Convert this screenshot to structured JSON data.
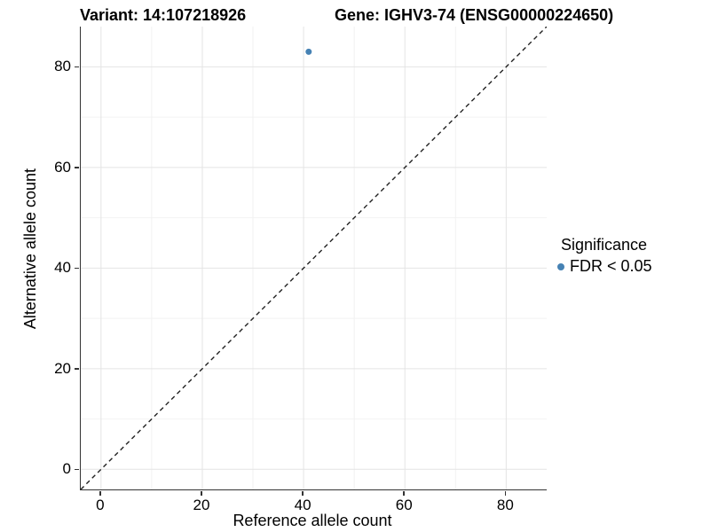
{
  "header": {
    "left_title": "Variant: 14:107218926",
    "right_title": "Gene: IGHV3-74 (ENSG00000224650)"
  },
  "chart_data": {
    "type": "scatter",
    "xlabel": "Reference allele count",
    "ylabel": "Alternative allele count",
    "xlim": [
      -4,
      88
    ],
    "ylim": [
      -4,
      88
    ],
    "x_ticks": [
      0,
      20,
      40,
      60,
      80
    ],
    "y_ticks": [
      0,
      20,
      40,
      60,
      80
    ],
    "minor_gridlines": [
      10,
      30,
      50,
      70
    ],
    "grid": "major and minor, light gray, on white background",
    "points": [
      {
        "x": 41,
        "y": 83,
        "group": "FDR < 0.05"
      }
    ],
    "identity_line": {
      "equation": "y = x",
      "style": "dashed",
      "span": [
        -4,
        88
      ]
    },
    "legend": {
      "title": "Significance",
      "position": "right",
      "entries": [
        {
          "label": "FDR < 0.05",
          "marker": "circle",
          "color": "#4682B4"
        }
      ]
    }
  },
  "colors": {
    "point": "#4682B4",
    "axis_line": "#333333",
    "tick": "#333333",
    "grid_major": "#e4e4e4",
    "grid_minor": "#f2f2f2",
    "identity_line": "#222222",
    "text": "#000000",
    "background": "#ffffff"
  }
}
